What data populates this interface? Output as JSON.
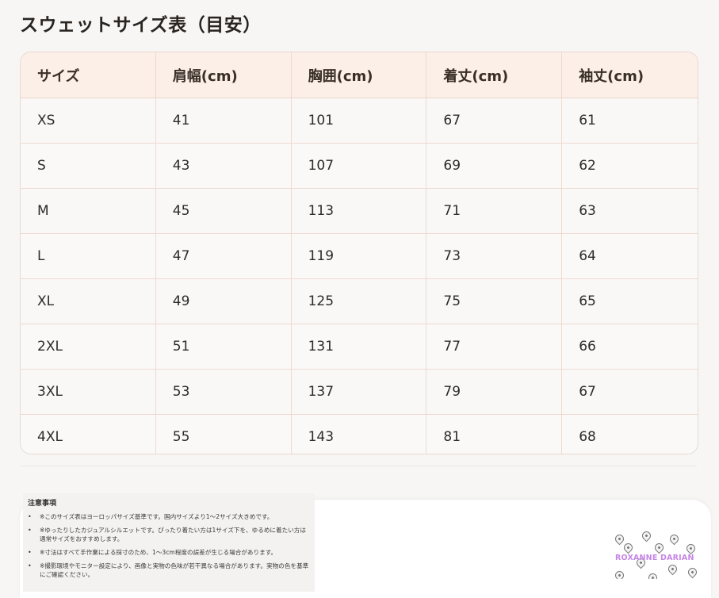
{
  "page": {
    "title": "スウェットサイズ表（目安）"
  },
  "table": {
    "headers": [
      "サイズ",
      "肩幅(cm)",
      "胸囲(cm)",
      "着丈(cm)",
      "袖丈(cm)"
    ],
    "rows": [
      [
        "XS",
        "41",
        "101",
        "67",
        "61"
      ],
      [
        "S",
        "43",
        "107",
        "69",
        "62"
      ],
      [
        "M",
        "45",
        "113",
        "71",
        "63"
      ],
      [
        "L",
        "47",
        "119",
        "73",
        "64"
      ],
      [
        "XL",
        "49",
        "125",
        "75",
        "65"
      ],
      [
        "2XL",
        "51",
        "131",
        "77",
        "66"
      ],
      [
        "3XL",
        "53",
        "137",
        "79",
        "67"
      ],
      [
        "4XL",
        "55",
        "143",
        "81",
        "68"
      ]
    ]
  },
  "notes": {
    "title": "注意事項",
    "items": [
      "※このサイズ表はヨーロッパサイズ基準です。国内サイズより1〜2サイズ大きめです。",
      "※ゆったりしたカジュアルシルエットです。ぴったり着たい方は1サイズ下を、ゆるめに着たい方は通常サイズをおすすめします。",
      "※寸法はすべて手作業による採寸のため、1〜3cm程度の誤差が生じる場合があります。",
      "※撮影環境やモニター設定により、画像と実物の色味が若干異なる場合があります。実物の色を基準にご確認ください。"
    ]
  },
  "brand": {
    "label": "ROXANNE DARIAN",
    "color": "#c685e6",
    "pattern_icon": "water-drop-icon"
  },
  "colors": {
    "header_bg": "#fbefe8",
    "border": "#efd9cf",
    "background": "#f7f6f4"
  }
}
